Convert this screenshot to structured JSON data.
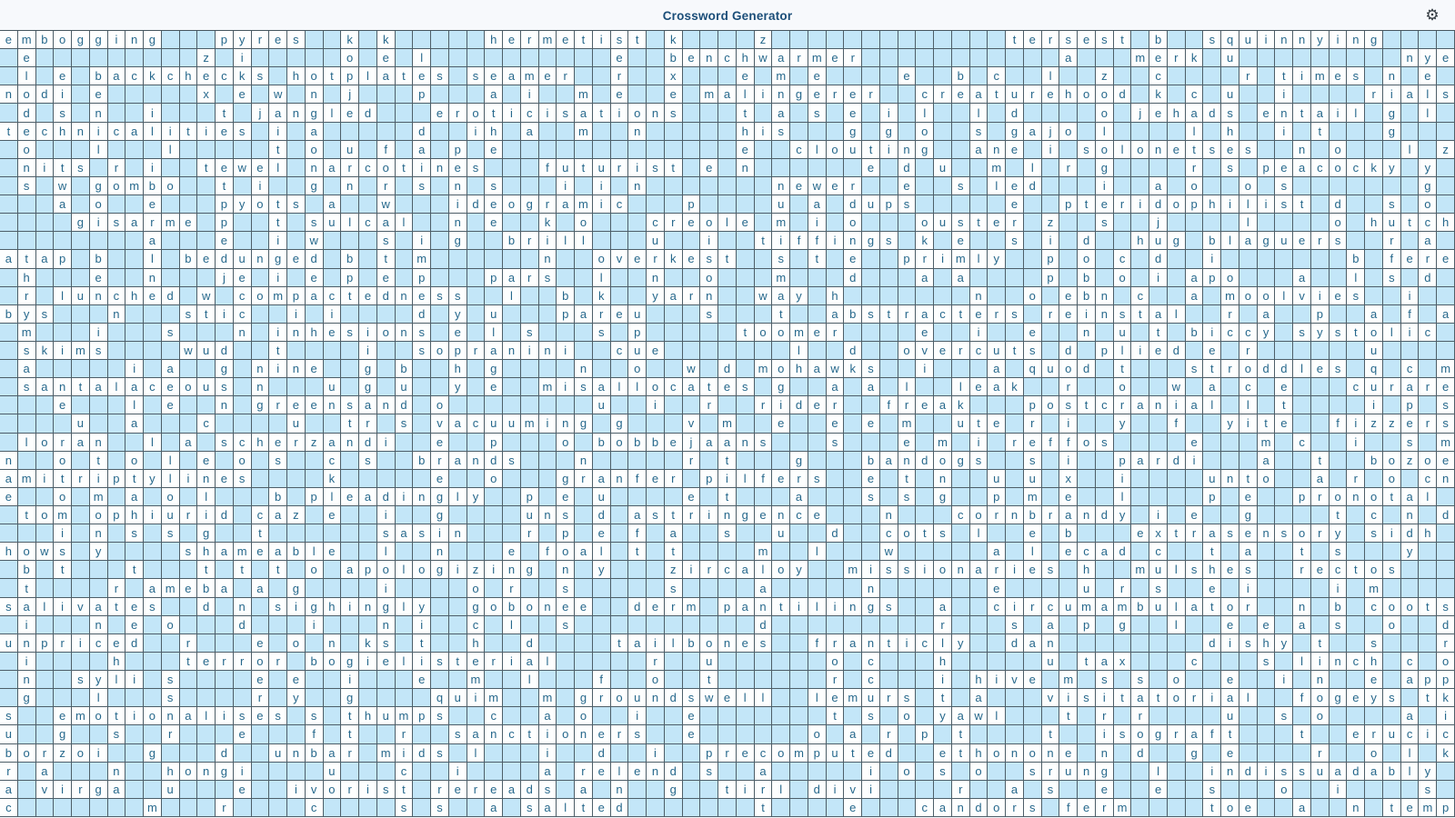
{
  "header": {
    "title": "Crossword Generator",
    "gear_icon": "settings"
  },
  "colors": {
    "page_bg": "#f7f9fc",
    "title": "#1b4e79",
    "empty_cell": "#c3e6f8",
    "filled_cell": "#fdfefe",
    "letter": "#26688c",
    "grid_line": "#4d5e68",
    "gear": "#333b41"
  },
  "grid": {
    "cols": 81,
    "rows": 43,
    "cells": [
      "embogging...pyres..k.k.....hermetist.k....z.............tersest.b..squinnying....",
      ".e.........z.i.....o.e.l..........e..benchwarmer...........a...merk.u.........nye",
      ".l.e.backchecks.hotplates.seamer..r..x...e.m.e....e..b.c..l..z..c....r.times.n.e.",
      "nodi.e.....x.e.w.n.j...p...a.i..m.e..e.malingerer..creaturehood.k.c.u..i....rials",
      ".d.s.n..i...t.jangled...eroticisations...t.a.s.e.i.l..l.d....o.jehads.entail.g.l.",
      "technicalities.i.a.....d..ih.a..m..n.....his...g.g.o..s.gajo.l....l.h..i.t...g...",
      ".o...l...l.....t.o.u.f.a.p.e.............e..clouting..ane.i.solonetses..n.o...l.z",
      ".nits.r.i..tewel.narcotines...futurist.e.n......e.d.u..m.l.r.g....r.s.peacocky.y.",
      ".s.w.gombo..t.i..g.n.r.s.n.s...i.i.n.......newer..e..s.led...i..a.o..o.s.......g.",
      "...a.o..e...pyots.a..w...ideogramic...p....u.a.dups.....e..pteridophilist.d..s.o.",
      "....gisarme.p..t.sulcal..n.e..k.o...creole.m.i.o...ouster.z..s..j....l....o.hutch",
      "........a...e..i.w...s.i.g..brill...u..i..tiffings.k.e..s.i.d..hug.blaguers..r.a.",
      "atap.b..l.bedunged.b.t.m......n..overkest..s.t.e..primly..p.o.c.d..i.......b.fere",
      ".h...e..n...je.i.e.p.e.p...pars..l..n..o...m...d...a.a....p.b.o.i.apo...a..l.s.d.",
      ".r.lunched.w.compactedness..l..b.k..yarn..way.h.......n..o.ebn.c..a.moolvies..i.",
      "bys...n...stic..i.i....d.y.u...pareu...s...t..abstracters.reinstal..r.a..p..a.f.a",
      ".m...i...s...n.inhesions.e.l.s...s.p.....toomer....e..i..e..n.u.t.biccy.systolic.",
      ".skims....wud..t....i..sopranini..cue.......l..d..overcuts.d.plied.e.r......u....",
      ".a.....i.a..g.nine..g.b..h.g....n..o..w.d.mohawks..i...a.quod.t...stroddles.q.c.m",
      ".santalaceous.n...u.g.u..y.e..misallocates.g..a.a.l..leak..r..o..w.a.c.e...curare",
      "...e...l.e..n.greensand.o........u..i..r..rider..freak...postcranial.l.t....i.p.s",
      "....u..a...c....u..tr.s.vacuuming.g...v.m..e..e.e.m..ute.r.i..y..f..yite..fizzers",
      ".loran..l.a.scherzandi..e..p...o.bobbejaans...s...e.m.i.reffos....e...m.c..i..s.m",
      "n..o.t.o.l.e.o.s..c.s..brands...n.....r.t...g...bandogs..s.i..pardi...a..t..bozoe",
      "amitriptylines....k.....e..o...granfer.pilfers..e.t.n..u.u.x..i....unto..a.r.o.cn",
      "e..o.m.a.o.l...b.pleadingly..p.e.u....e.t...a...s.s.g..p.m.e..l....p.e..pronotal.",
      ".tom.ophiurid.caz.e..i..g....uns.d.astringence...n...cornbrandy.i.e..g....t.c.n.d",
      "...i.n.s.s.g..t......sasin...r.p.e.f.a..s..u..d..cots.l..e.b...extrasensory.sidh.",
      "hows.y....shameable..l..n...e.foal.t.t....m..l...w.....a.l.ecad.c..t.a..t.s...y..",
      ".b.t...t...t.t.t.o.apologizing.n.y...zircaloy..missionaries.h..mulshes..rectos...",
      ".t....r.ameba.a.g....i....o.r..s.....s....a.....n......e....u.r.s..e.i....i.m....",
      "salivates..d.n.sighingly..gobonee..derm.pantilings..a..circumambulator..n.b.coots",
      ".i...n.e.o...d...i...n.i..c.l..s..........d.........r...s.a.p.g..l..e.e.a.s..o..d",
      "unpriced..r...e.o.n.ks.t..h..d....tailbones..franticly..dan........dishy.t..s...r",
      ".i....h...terror.bogielisterial.....r..u......o.c...h.....u.tax...c...s.linch.c.o",
      ".n..syli.s....e.e..i...e..m..l...f..o..t......r.c...i.hive.m.s.s.o..e..i.n..e.app",
      ".g...l...s....r.y..g....quim..m.groundswell..lemurs.t.a...visitatorial..fogeys.tk",
      "s..emotionalises.s.thumps..c..a.o..i..e.......t.s.o.yawl...t.r.r....u..s.o....a.i",
      "u..g..s..r...e...f.t..r..sanctioners..e......o.a.r.p.t....t..isograft...t..erucic",
      "borzoi..g...d..unbar.mids.l...i..d..i..precomputed..ethonone.n.d..g.e....r..o.l.k",
      "r.a...n..hongi....u...c..i....a.relend.s..a.....i.o.s.o..srung..l..indissuadably.",
      "a.virga..u...e..ivorist.rereads.a.n..g..tirl.divi....r..a.s..e..e..s...o..i....s.",
      "c.......m...r....c....s.s..a.salted.......t....e...candors.ferm....toe..a..n.temp"
    ]
  }
}
